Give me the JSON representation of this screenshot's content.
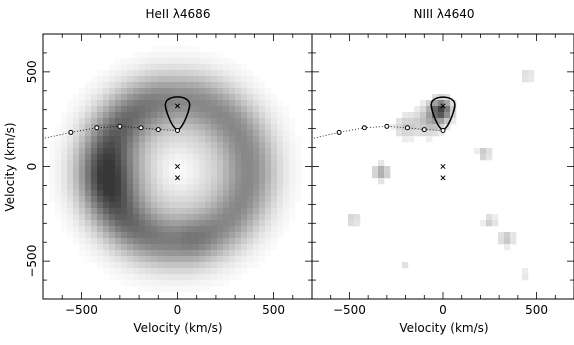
{
  "chart_data": [
    {
      "type": "heatmap",
      "title": "HeII λ4686",
      "xlabel": "Velocity (km/s)",
      "ylabel": "Velocity (km/s)",
      "xlim": [
        -700,
        700
      ],
      "ylim": [
        -700,
        700
      ],
      "x_ticks": [
        -500,
        0,
        500
      ],
      "y_ticks": [
        -500,
        0,
        500
      ],
      "x_tick_labels": [
        "−500",
        "0",
        "500"
      ],
      "y_tick_labels": [
        "−500",
        "0",
        "500"
      ],
      "emission_ring": {
        "center": [
          0,
          -20
        ],
        "peak_radius_kms": 380,
        "width_kms": 150,
        "peak_intensity": 0.75,
        "note": "broad ring, darker on the left side"
      },
      "blobs": [
        {
          "x": -330,
          "y": -60,
          "sigma": 120,
          "intensity": 0.25
        },
        {
          "x": 80,
          "y": -380,
          "sigma": 80,
          "intensity": 0.1
        }
      ],
      "markers_x": [
        [
          0,
          320
        ],
        [
          0,
          0
        ],
        [
          0,
          -60
        ]
      ],
      "markers_circle": [
        [
          -555,
          180
        ],
        [
          -420,
          205
        ],
        [
          -300,
          212
        ],
        [
          -190,
          205
        ],
        [
          -100,
          195
        ],
        [
          0,
          190
        ]
      ],
      "roche_lobe": {
        "center": [
          0,
          320
        ],
        "cusp_y": 190,
        "radius": 140
      },
      "stream_curve": [
        [
          -690,
          150
        ],
        [
          -555,
          180
        ],
        [
          -420,
          205
        ],
        [
          -300,
          212
        ],
        [
          -190,
          205
        ],
        [
          -100,
          195
        ],
        [
          0,
          190
        ]
      ]
    },
    {
      "type": "heatmap",
      "title": "NIII λ4640",
      "xlabel": "Velocity (km/s)",
      "ylabel": "",
      "xlim": [
        -700,
        700
      ],
      "ylim": [
        -700,
        700
      ],
      "x_ticks": [
        -500,
        0,
        500
      ],
      "y_ticks": [
        -500,
        0,
        500
      ],
      "x_tick_labels": [
        "−500",
        "0",
        "500"
      ],
      "y_tick_labels": [],
      "blobs": [
        {
          "x": -10,
          "y": 300,
          "sigma": 40,
          "intensity": 0.85
        },
        {
          "x": -70,
          "y": 240,
          "sigma": 55,
          "intensity": 0.35
        },
        {
          "x": -200,
          "y": 210,
          "sigma": 45,
          "intensity": 0.25
        },
        {
          "x": -330,
          "y": -30,
          "sigma": 30,
          "intensity": 0.45
        },
        {
          "x": 220,
          "y": 70,
          "sigma": 25,
          "intensity": 0.3
        },
        {
          "x": 450,
          "y": 480,
          "sigma": 25,
          "intensity": 0.2
        },
        {
          "x": -480,
          "y": -280,
          "sigma": 25,
          "intensity": 0.25
        },
        {
          "x": 250,
          "y": -290,
          "sigma": 25,
          "intensity": 0.25
        },
        {
          "x": 340,
          "y": -380,
          "sigma": 30,
          "intensity": 0.3
        },
        {
          "x": -200,
          "y": -520,
          "sigma": 20,
          "intensity": 0.15
        },
        {
          "x": 440,
          "y": -570,
          "sigma": 20,
          "intensity": 0.15
        }
      ],
      "markers_x": [
        [
          0,
          320
        ],
        [
          0,
          0
        ],
        [
          0,
          -60
        ]
      ],
      "markers_circle": [
        [
          -555,
          180
        ],
        [
          -420,
          205
        ],
        [
          -300,
          212
        ],
        [
          -190,
          205
        ],
        [
          -100,
          195
        ],
        [
          0,
          190
        ]
      ],
      "roche_lobe": {
        "center": [
          0,
          320
        ],
        "cusp_y": 190,
        "radius": 140
      },
      "stream_curve": [
        [
          -690,
          150
        ],
        [
          -555,
          180
        ],
        [
          -420,
          205
        ],
        [
          -300,
          212
        ],
        [
          -190,
          205
        ],
        [
          -100,
          195
        ],
        [
          0,
          190
        ]
      ]
    }
  ]
}
